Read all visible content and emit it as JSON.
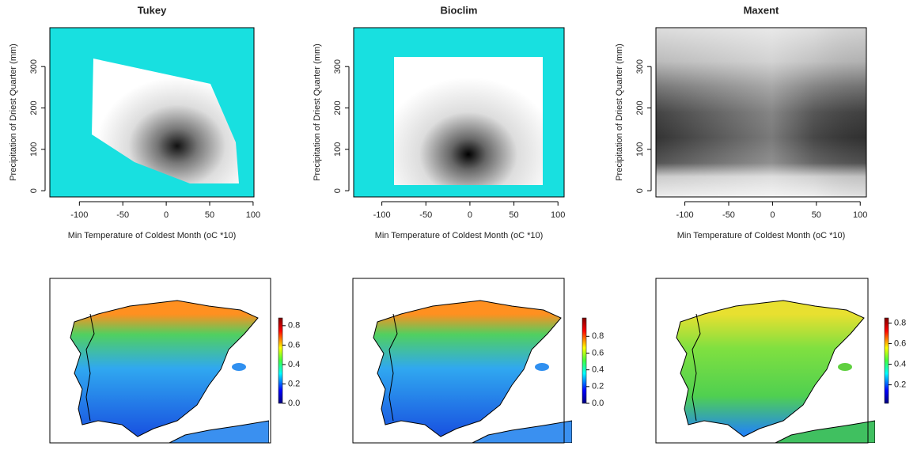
{
  "chart_data": [
    {
      "type": "heatmap",
      "title": "Tukey",
      "xlabel": "Min Temperature of Coldest Month (oC *10)",
      "ylabel": "Precipitation of Driest Quarter (mm)",
      "xlim": [
        -134,
        101
      ],
      "ylim": [
        -15,
        394
      ],
      "xticks": [
        -100,
        -50,
        0,
        50,
        100
      ],
      "yticks": [
        0,
        100,
        200,
        300
      ]
    },
    {
      "type": "heatmap",
      "title": "Bioclim",
      "xlabel": "Min Temperature of Coldest Month (oC *10)",
      "ylabel": "Precipitation of Driest Quarter (mm)",
      "xlim": [
        -132,
        107
      ],
      "ylim": [
        -15,
        394
      ],
      "xticks": [
        -100,
        -50,
        0,
        50,
        100
      ],
      "yticks": [
        0,
        100,
        200,
        300
      ]
    },
    {
      "type": "heatmap",
      "title": "Maxent",
      "xlabel": "Min Temperature of Coldest Month (oC *10)",
      "ylabel": "Precipitation of Driest Quarter (mm)",
      "xlim": [
        -133,
        107
      ],
      "ylim": [
        -15,
        394
      ],
      "xticks": [
        -100,
        -50,
        0,
        50,
        100
      ],
      "yticks": [
        0,
        100,
        200,
        300
      ]
    },
    {
      "type": "map",
      "ylim": [
        0,
        0.88
      ],
      "yticks": [
        {
          "value": 0,
          "label": "0.0"
        },
        {
          "value": 0.2,
          "label": "0.2"
        },
        {
          "value": 0.4,
          "label": "0.4"
        },
        {
          "value": 0.6,
          "label": "0.6"
        },
        {
          "value": 0.8,
          "label": "0.8"
        }
      ]
    },
    {
      "type": "map",
      "ylim": [
        0,
        1.02
      ],
      "yticks": [
        {
          "value": 0,
          "label": "0.0"
        },
        {
          "value": 0.2,
          "label": "0.2"
        },
        {
          "value": 0.4,
          "label": "0.4"
        },
        {
          "value": 0.6,
          "label": "0.6"
        },
        {
          "value": 0.8,
          "label": "0.8"
        }
      ]
    },
    {
      "type": "map",
      "ylim": [
        0.02,
        0.85
      ],
      "yticks": [
        {
          "value": 0.2,
          "label": "0.2"
        },
        {
          "value": 0.4,
          "label": "0.4"
        },
        {
          "value": 0.6,
          "label": "0.6"
        },
        {
          "value": 0.8,
          "label": "0.8"
        }
      ]
    }
  ]
}
